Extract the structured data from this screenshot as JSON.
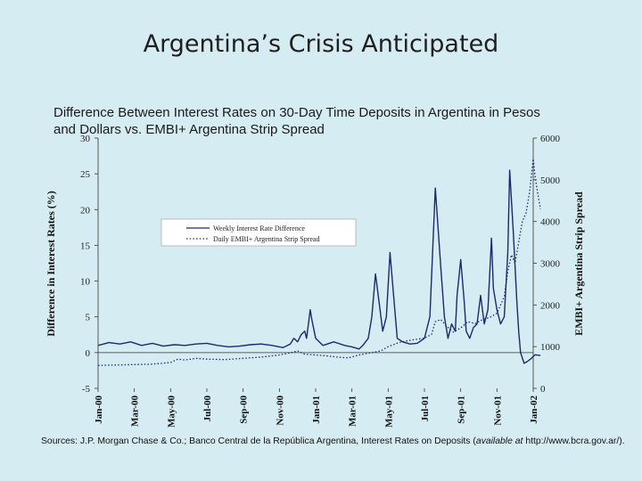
{
  "slide": {
    "title": "Argentina’s Crisis Anticipated"
  },
  "chart_heading": "Difference Between Interest Rates on 30-Day Time Deposits in Argentina in Pesos and Dollars vs. EMBI+ Argentina Strip Spread",
  "sources": {
    "prefix": "Sources: J.P. Morgan Chase & Co.; Banco Central de la República Argentina, Interest Rates on Deposits (",
    "italic": "available at",
    "suffix": " http://www.bcra.gov.ar/)."
  },
  "colors": {
    "background": "#d6ecf3",
    "series": "#1c2a6b",
    "legend_bg": "#ffffff"
  },
  "chart_data": {
    "type": "line",
    "x_tick_labels": [
      "Jan-00",
      "Mar-00",
      "May-00",
      "Jul-00",
      "Sep-00",
      "Nov-00",
      "Jan-01",
      "Mar-01",
      "May-01",
      "Jul-01",
      "Sep-01",
      "Nov-01",
      "Jan-02"
    ],
    "ylabel_left": "Difference in Interest Rates (%)",
    "ylabel_right": "EMBI+ Argentina Strip Spread",
    "ylim_left": [
      -5,
      30
    ],
    "yticks_left": [
      "30",
      "25",
      "20",
      "15",
      "10",
      "5",
      "0",
      "-5"
    ],
    "ylim_right": [
      0,
      6000
    ],
    "yticks_right": [
      "6000",
      "5000",
      "4000",
      "3000",
      "2000",
      "1000",
      "0"
    ],
    "grid": false,
    "legend_position": "upper-left",
    "series": [
      {
        "name": "Weekly Interest Rate Difference",
        "axis": "left",
        "style": "solid",
        "points": [
          [
            0,
            1
          ],
          [
            0.3,
            1.4
          ],
          [
            0.6,
            1.2
          ],
          [
            0.9,
            1.5
          ],
          [
            1.2,
            1.0
          ],
          [
            1.5,
            1.3
          ],
          [
            1.8,
            0.9
          ],
          [
            2.1,
            1.1
          ],
          [
            2.4,
            1.0
          ],
          [
            2.7,
            1.2
          ],
          [
            3.0,
            1.3
          ],
          [
            3.3,
            1.0
          ],
          [
            3.6,
            0.8
          ],
          [
            3.9,
            0.9
          ],
          [
            4.2,
            1.1
          ],
          [
            4.5,
            1.2
          ],
          [
            4.8,
            1.0
          ],
          [
            5.0,
            0.8
          ],
          [
            5.1,
            0.7
          ],
          [
            5.3,
            1.2
          ],
          [
            5.4,
            2.0
          ],
          [
            5.5,
            1.5
          ],
          [
            5.6,
            2.5
          ],
          [
            5.7,
            3.0
          ],
          [
            5.75,
            2.0
          ],
          [
            5.8,
            4.0
          ],
          [
            5.85,
            6.0
          ],
          [
            5.9,
            4.5
          ],
          [
            6.0,
            2.0
          ],
          [
            6.2,
            1.0
          ],
          [
            6.5,
            1.5
          ],
          [
            6.8,
            1.0
          ],
          [
            7.0,
            0.8
          ],
          [
            7.2,
            0.5
          ],
          [
            7.3,
            1.0
          ],
          [
            7.45,
            2.0
          ],
          [
            7.55,
            5.0
          ],
          [
            7.65,
            11.0
          ],
          [
            7.75,
            7.0
          ],
          [
            7.85,
            3.0
          ],
          [
            7.95,
            5.0
          ],
          [
            8.05,
            14.0
          ],
          [
            8.15,
            8.0
          ],
          [
            8.25,
            2.0
          ],
          [
            8.4,
            1.5
          ],
          [
            8.6,
            1.2
          ],
          [
            8.8,
            1.3
          ],
          [
            9.0,
            2.0
          ],
          [
            9.15,
            5.0
          ],
          [
            9.3,
            23.0
          ],
          [
            9.45,
            12.0
          ],
          [
            9.55,
            5.0
          ],
          [
            9.65,
            2.0
          ],
          [
            9.75,
            4.0
          ],
          [
            9.85,
            3.0
          ],
          [
            9.9,
            8.0
          ],
          [
            10.0,
            13.0
          ],
          [
            10.1,
            7.0
          ],
          [
            10.15,
            3.0
          ],
          [
            10.25,
            2.0
          ],
          [
            10.35,
            3.5
          ],
          [
            10.45,
            4.0
          ],
          [
            10.55,
            8.0
          ],
          [
            10.65,
            4.0
          ],
          [
            10.75,
            6.0
          ],
          [
            10.85,
            16.0
          ],
          [
            10.9,
            9.0
          ],
          [
            11.0,
            6.0
          ],
          [
            11.1,
            4.0
          ],
          [
            11.2,
            5.0
          ],
          [
            11.3,
            14.0
          ],
          [
            11.35,
            25.5
          ],
          [
            11.45,
            17.0
          ],
          [
            11.55,
            7.0
          ],
          [
            11.6,
            3.0
          ],
          [
            11.65,
            0.0
          ],
          [
            11.75,
            -1.5
          ],
          [
            11.85,
            -1.2
          ],
          [
            11.95,
            -0.8
          ],
          [
            12.05,
            -0.3
          ],
          [
            12.2,
            -0.4
          ]
        ]
      },
      {
        "name": "Daily EMBI+ Argentina Strip Spread",
        "axis": "right",
        "style": "dotted",
        "points": [
          [
            0,
            550
          ],
          [
            0.5,
            560
          ],
          [
            1.0,
            570
          ],
          [
            1.5,
            580
          ],
          [
            2.0,
            620
          ],
          [
            2.2,
            700
          ],
          [
            2.4,
            680
          ],
          [
            2.7,
            720
          ],
          [
            3.0,
            700
          ],
          [
            3.5,
            690
          ],
          [
            4.0,
            720
          ],
          [
            4.5,
            750
          ],
          [
            5.0,
            800
          ],
          [
            5.3,
            850
          ],
          [
            5.5,
            900
          ],
          [
            5.7,
            820
          ],
          [
            6.0,
            800
          ],
          [
            6.3,
            780
          ],
          [
            6.6,
            750
          ],
          [
            6.9,
            730
          ],
          [
            7.2,
            800
          ],
          [
            7.5,
            850
          ],
          [
            7.8,
            900
          ],
          [
            8.0,
            1000
          ],
          [
            8.3,
            1100
          ],
          [
            8.6,
            1150
          ],
          [
            8.8,
            1180
          ],
          [
            9.0,
            1200
          ],
          [
            9.2,
            1300
          ],
          [
            9.3,
            1600
          ],
          [
            9.45,
            1650
          ],
          [
            9.6,
            1500
          ],
          [
            9.8,
            1350
          ],
          [
            10.0,
            1450
          ],
          [
            10.2,
            1600
          ],
          [
            10.4,
            1550
          ],
          [
            10.6,
            1650
          ],
          [
            10.8,
            1700
          ],
          [
            11.0,
            1800
          ],
          [
            11.2,
            2200
          ],
          [
            11.3,
            2800
          ],
          [
            11.4,
            3200
          ],
          [
            11.5,
            3000
          ],
          [
            11.6,
            3500
          ],
          [
            11.7,
            4000
          ],
          [
            11.8,
            4200
          ],
          [
            11.9,
            4700
          ],
          [
            12.0,
            5500
          ],
          [
            12.05,
            5100
          ],
          [
            12.1,
            4800
          ],
          [
            12.2,
            4300
          ]
        ]
      }
    ]
  }
}
